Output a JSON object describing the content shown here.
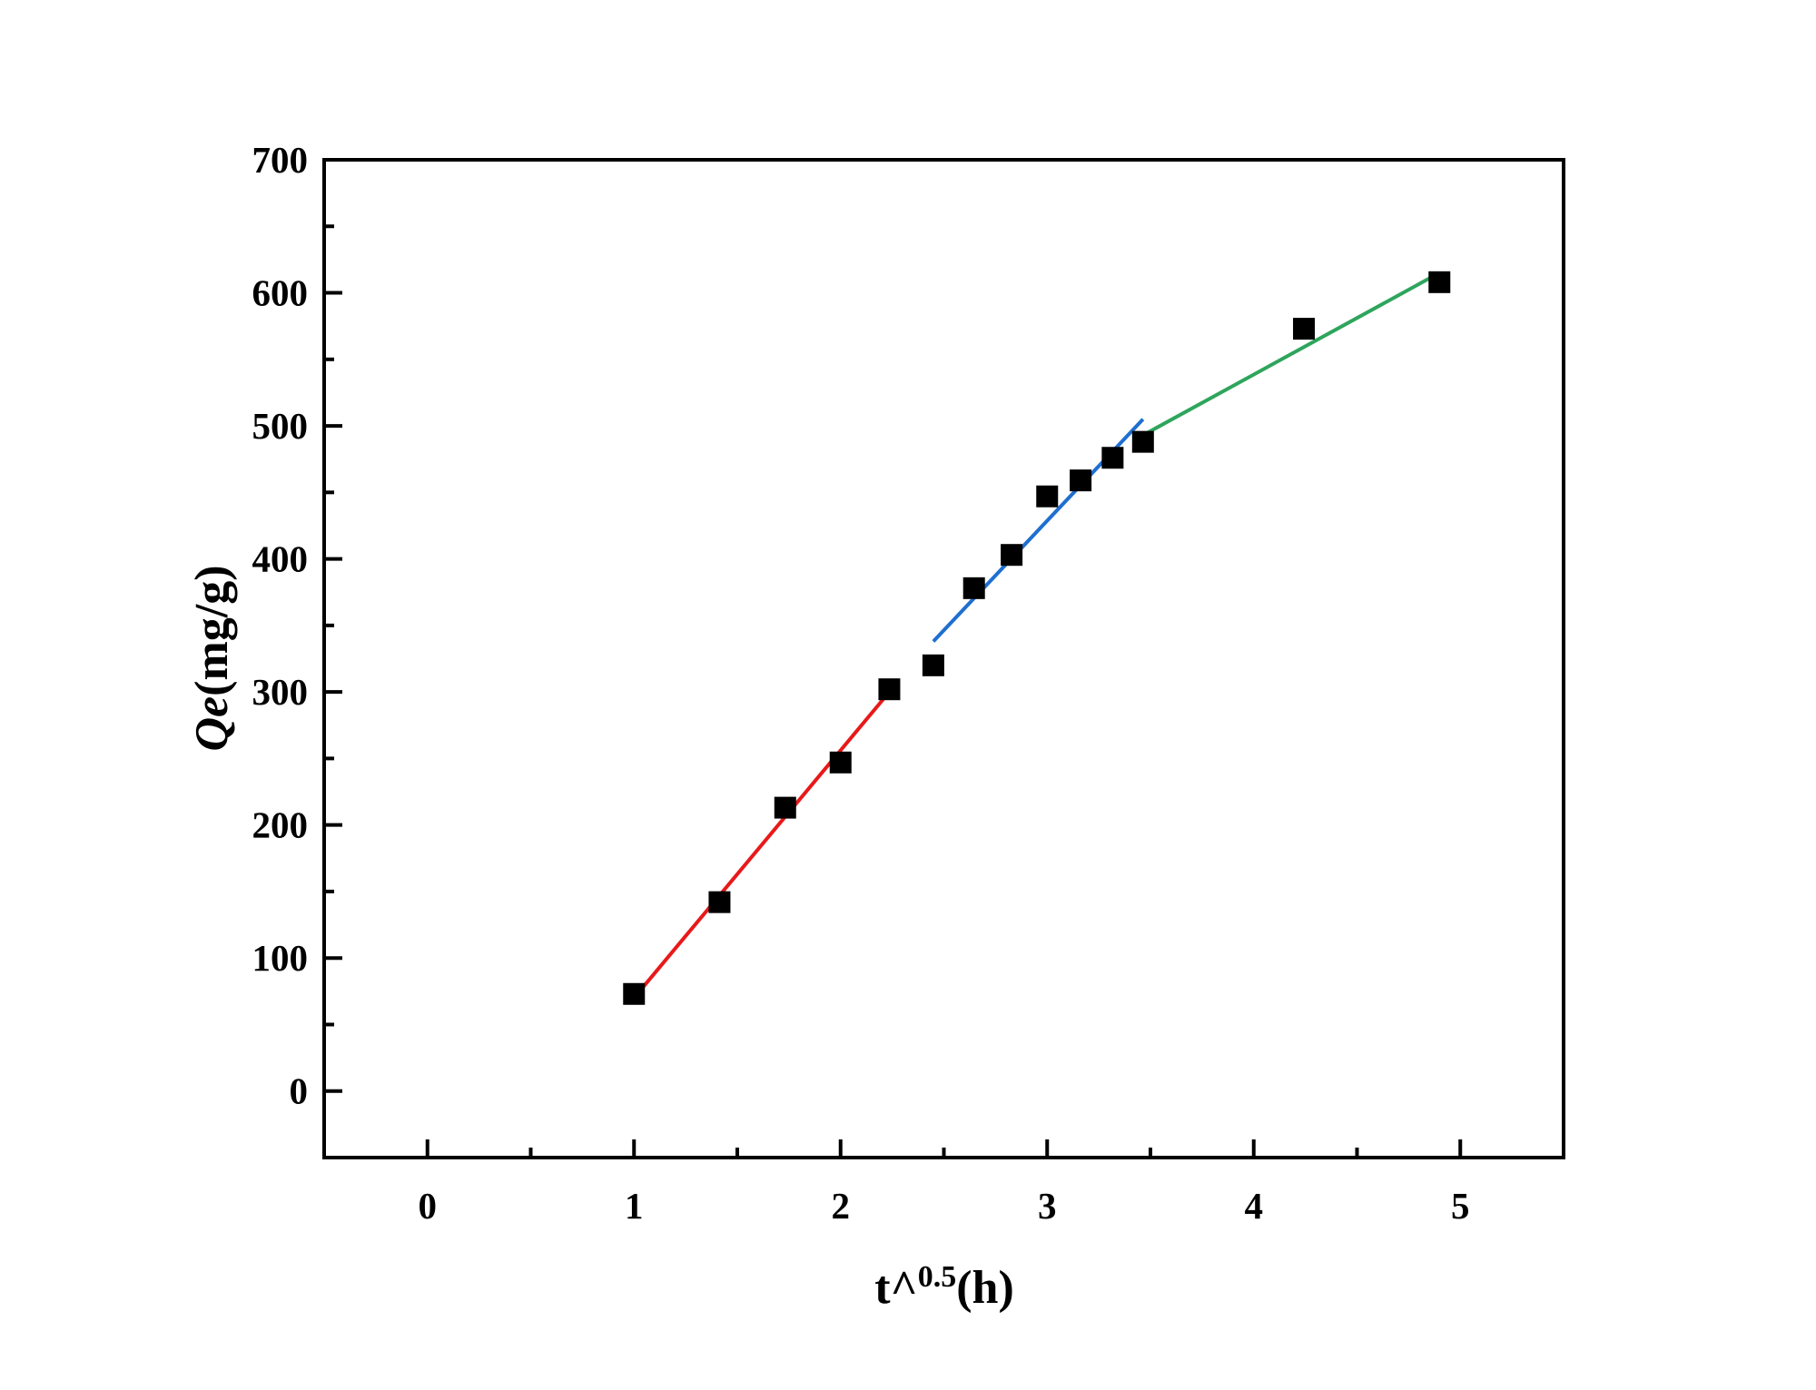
{
  "chart_data": {
    "type": "scatter",
    "x_label_parts": [
      "t^",
      "0.5",
      "(h)"
    ],
    "y_label_parts": [
      "Qe",
      "(mg/g)"
    ],
    "xlim": [
      -0.5,
      5.5
    ],
    "ylim": [
      -50,
      700
    ],
    "xticks": [
      0,
      1,
      2,
      3,
      4,
      5
    ],
    "yticks": [
      0,
      100,
      200,
      300,
      400,
      500,
      600,
      700
    ],
    "xminorticks": [
      0.5,
      1.5,
      2.5,
      3.5,
      4.5
    ],
    "yminorticks": [
      50,
      150,
      250,
      350,
      450,
      550,
      650
    ],
    "series": [
      {
        "color": "#000000",
        "x": [
          1,
          1.414,
          1.732,
          2,
          2.236,
          2.449,
          2.646,
          2.828,
          3,
          3.162,
          3.317,
          3.464,
          4.243,
          4.899
        ],
        "values": [
          73,
          142,
          213,
          247,
          302,
          320,
          378,
          403,
          447,
          459,
          476,
          488,
          573,
          608
        ]
      }
    ],
    "fit_lines": [
      {
        "color": "#e8191a",
        "x": [
          1,
          2.236
        ],
        "values": [
          70,
          300
        ]
      },
      {
        "color": "#1f6fd0",
        "x": [
          2.449,
          3.464
        ],
        "values": [
          338,
          505
        ]
      },
      {
        "color": "#2ea55c",
        "x": [
          3.464,
          4.899
        ],
        "values": [
          493,
          615
        ]
      }
    ]
  }
}
